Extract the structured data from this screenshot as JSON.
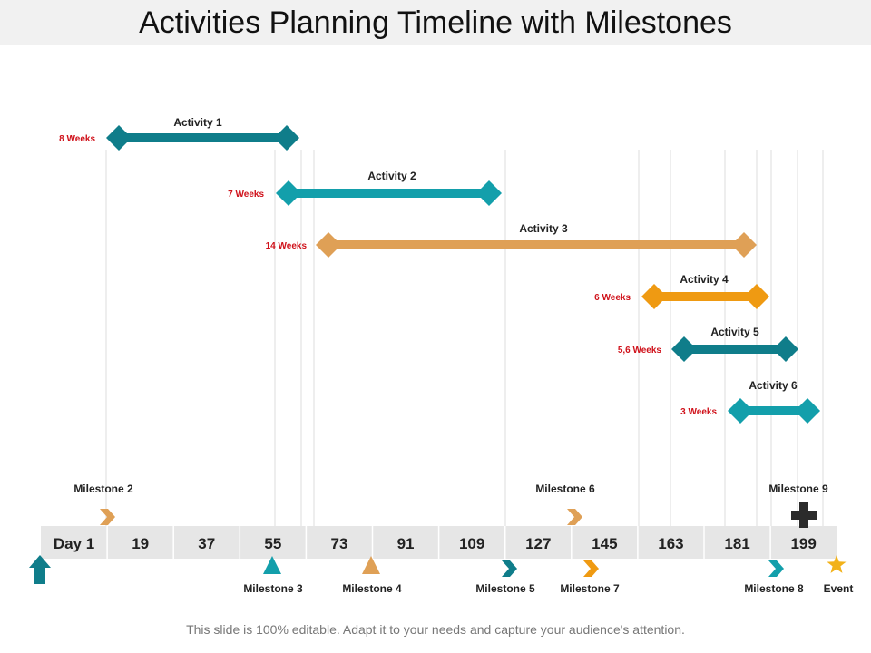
{
  "title": "Activities Planning Timeline with Milestones",
  "footer": "This slide is 100% editable. Adapt it to your needs and capture your audience's attention.",
  "colors": {
    "teal": "#0f7d8a",
    "cyan": "#139fab",
    "tan": "#dfa056",
    "orange": "#ef9a12",
    "black": "#2b2b2b",
    "gold": "#f2b21a"
  },
  "timeline": {
    "first_label": "Day 1",
    "days": [
      "19",
      "37",
      "55",
      "73",
      "91",
      "109",
      "127",
      "145",
      "163",
      "181",
      "199"
    ]
  },
  "activities": [
    {
      "label": "Activity 1",
      "duration": "8 Weeks",
      "color": "#0f7d8a"
    },
    {
      "label": "Activity 2",
      "duration": "7 Weeks",
      "color": "#139fab"
    },
    {
      "label": "Activity 3",
      "duration": "14 Weeks",
      "color": "#dfa056"
    },
    {
      "label": "Activity 4",
      "duration": "6 Weeks",
      "color": "#ef9a12"
    },
    {
      "label": "Activity 5",
      "duration": "5,6 Weeks",
      "color": "#0f7d8a"
    },
    {
      "label": "Activity 6",
      "duration": "3 Weeks",
      "color": "#139fab"
    }
  ],
  "milestones_top": [
    {
      "label": "Milestone 2",
      "icon": "chevron-right-icon",
      "color": "#dfa056"
    },
    {
      "label": "Milestone 6",
      "icon": "chevron-right-icon",
      "color": "#dfa056"
    },
    {
      "label": "Milestone 9",
      "icon": "plus-icon",
      "color": "#2b2b2b"
    }
  ],
  "milestones_bottom": [
    {
      "label": "Milestone 3",
      "icon": "triangle-up-icon",
      "color": "#139fab"
    },
    {
      "label": "Milestone 4",
      "icon": "triangle-up-icon",
      "color": "#dfa056"
    },
    {
      "label": "Milestone 5",
      "icon": "chevron-right-icon",
      "color": "#0f7d8a"
    },
    {
      "label": "Milestone 7",
      "icon": "chevron-right-icon",
      "color": "#ef9a12"
    },
    {
      "label": "Milestone 8",
      "icon": "chevron-right-icon",
      "color": "#139fab"
    },
    {
      "label": "Event",
      "icon": "star-icon",
      "color": "#f2b21a"
    }
  ],
  "start_marker": {
    "icon": "arrow-up-icon",
    "color": "#0f7d8a"
  }
}
